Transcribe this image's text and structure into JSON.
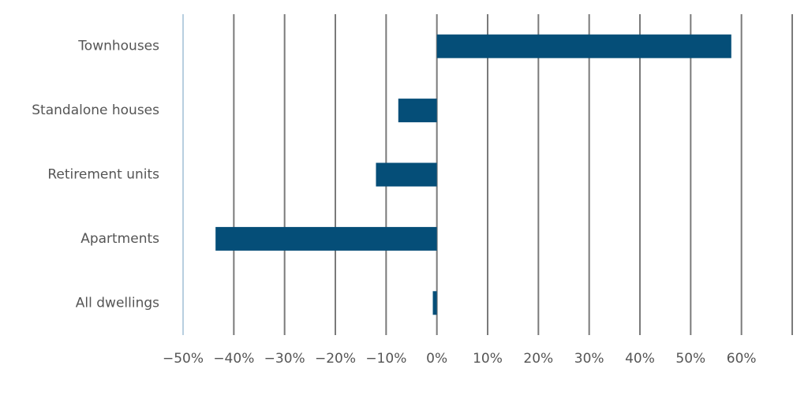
{
  "chart_data": {
    "type": "bar",
    "orientation": "horizontal",
    "categories": [
      "Townhouses",
      "Standalone houses",
      "Retirement units",
      "Apartments",
      "All dwellings"
    ],
    "values": [
      58,
      -7.6,
      -12,
      -43.6,
      -0.8
    ],
    "color": "#054e78",
    "xlim": [
      -50,
      70
    ],
    "xticks": [
      {
        "value": -50,
        "label": "−50%"
      },
      {
        "value": -40,
        "label": "−40%"
      },
      {
        "value": -30,
        "label": "−30%"
      },
      {
        "value": -20,
        "label": "−20%"
      },
      {
        "value": -10,
        "label": "−10%"
      },
      {
        "value": 0,
        "label": "0%"
      },
      {
        "value": 10,
        "label": "10%"
      },
      {
        "value": 20,
        "label": "20%"
      },
      {
        "value": 30,
        "label": "30%"
      },
      {
        "value": 40,
        "label": "40%"
      },
      {
        "value": 50,
        "label": "50%"
      },
      {
        "value": 60,
        "label": "60%"
      }
    ],
    "grid": true
  }
}
